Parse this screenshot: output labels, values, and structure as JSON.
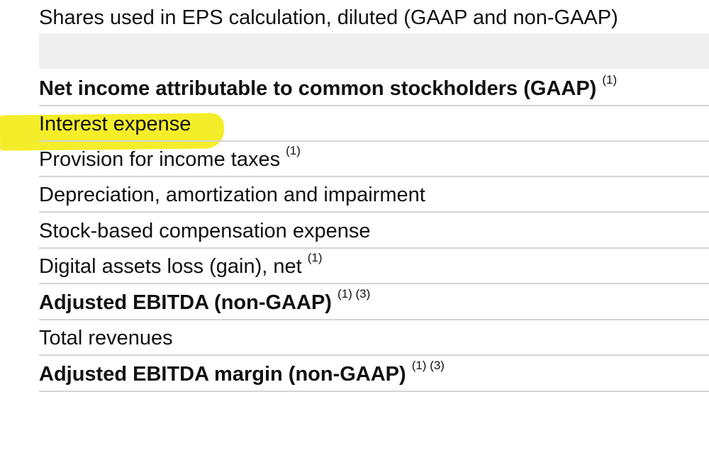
{
  "rows": [
    {
      "label": "Shares used in EPS calculation, diluted (GAAP and non-GAAP)",
      "note": "",
      "bold": false
    },
    {
      "label": "",
      "note": "",
      "bold": false
    },
    {
      "label": "Net income attributable to common stockholders (GAAP)",
      "note": "(1)",
      "bold": true
    },
    {
      "label": "Interest expense",
      "note": "",
      "bold": false,
      "highlighted": true
    },
    {
      "label": "Provision for income taxes",
      "note": "(1)",
      "bold": false
    },
    {
      "label": "Depreciation, amortization and impairment",
      "note": "",
      "bold": false
    },
    {
      "label": "Stock-based compensation expense",
      "note": "",
      "bold": false
    },
    {
      "label": "Digital assets loss (gain), net",
      "note": "(1)",
      "bold": false
    },
    {
      "label": "Adjusted EBITDA (non-GAAP)",
      "note": "(1) (3)",
      "bold": true
    },
    {
      "label": "Total revenues",
      "note": "",
      "bold": false
    },
    {
      "label": "Adjusted EBITDA margin (non-GAAP)",
      "note": "(1) (3)",
      "bold": true
    }
  ],
  "colors": {
    "highlight": "#f4ee2a",
    "shaded_band": "#efefef",
    "rule": "#d4d4d4",
    "text": "#111111"
  }
}
